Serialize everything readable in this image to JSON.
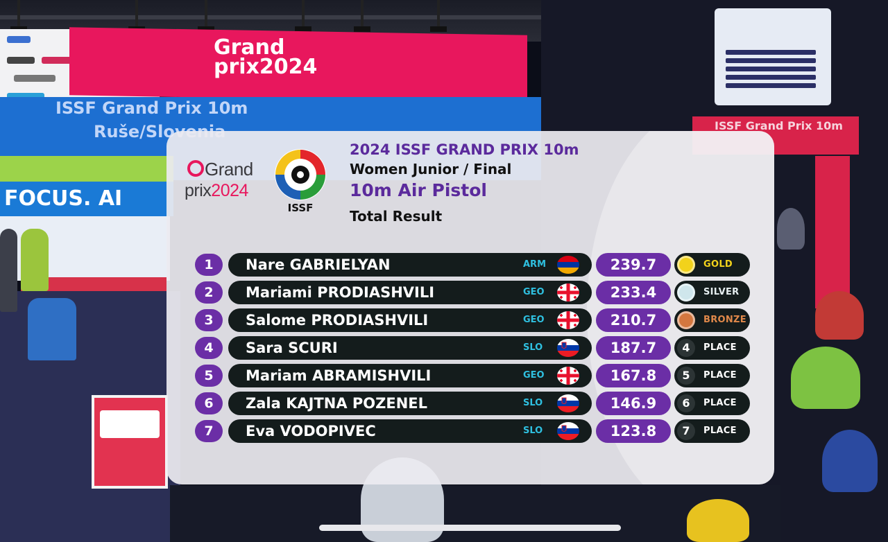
{
  "scene": {
    "bg_banner_year": "2024",
    "bg_wall_line1": "ISSF Grand Prix 10m",
    "bg_wall_line2": "Ruše/Slovenia",
    "bg_focus": "FOCUS. AI",
    "right_banner": "ISSF Grand Prix 10m"
  },
  "header": {
    "logo_grand": "Grand",
    "logo_prix": "prix",
    "logo_year": "2024",
    "issf_label": "ISSF",
    "title": "2024 ISSF GRAND PRIX 10m",
    "event": "Women Junior / Final",
    "discipline": "10m Air Pistol",
    "section": "Total Result"
  },
  "results": [
    {
      "rank": "1",
      "name": "Nare GABRIELYAN",
      "country": "ARM",
      "flag": "armenia-flag",
      "score": "239.7",
      "place": "GOLD",
      "medal": "gold"
    },
    {
      "rank": "2",
      "name": "Mariami PRODIASHVILI",
      "country": "GEO",
      "flag": "georgia-flag",
      "score": "233.4",
      "place": "SILVER",
      "medal": "silver"
    },
    {
      "rank": "3",
      "name": "Salome PRODIASHVILI",
      "country": "GEO",
      "flag": "georgia-flag",
      "score": "210.7",
      "place": "BRONZE",
      "medal": "bronze"
    },
    {
      "rank": "4",
      "name": "Sara SCURI",
      "country": "SLO",
      "flag": "slovenia-flag",
      "score": "187.7",
      "place": "PLACE",
      "place_num": "4",
      "medal": "none"
    },
    {
      "rank": "5",
      "name": "Mariam ABRAMISHVILI",
      "country": "GEO",
      "flag": "georgia-flag",
      "score": "167.8",
      "place": "PLACE",
      "place_num": "5",
      "medal": "none"
    },
    {
      "rank": "6",
      "name": "Zala KAJTNA POZENEL",
      "country": "SLO",
      "flag": "slovenia-flag",
      "score": "146.9",
      "place": "PLACE",
      "place_num": "6",
      "medal": "none"
    },
    {
      "rank": "7",
      "name": "Eva VODOPIVEC",
      "country": "SLO",
      "flag": "slovenia-flag",
      "score": "123.8",
      "place": "PLACE",
      "place_num": "7",
      "medal": "none"
    }
  ],
  "colors": {
    "accent_purple": "#6b2ea6",
    "title_purple": "#5b2a9c",
    "bar_dark": "#141c1c",
    "country_cyan": "#2fc0e0",
    "gold": "#f2d21b",
    "silver": "#cfe6ec",
    "bronze": "#d4773f",
    "brand_pink": "#e8175d"
  }
}
